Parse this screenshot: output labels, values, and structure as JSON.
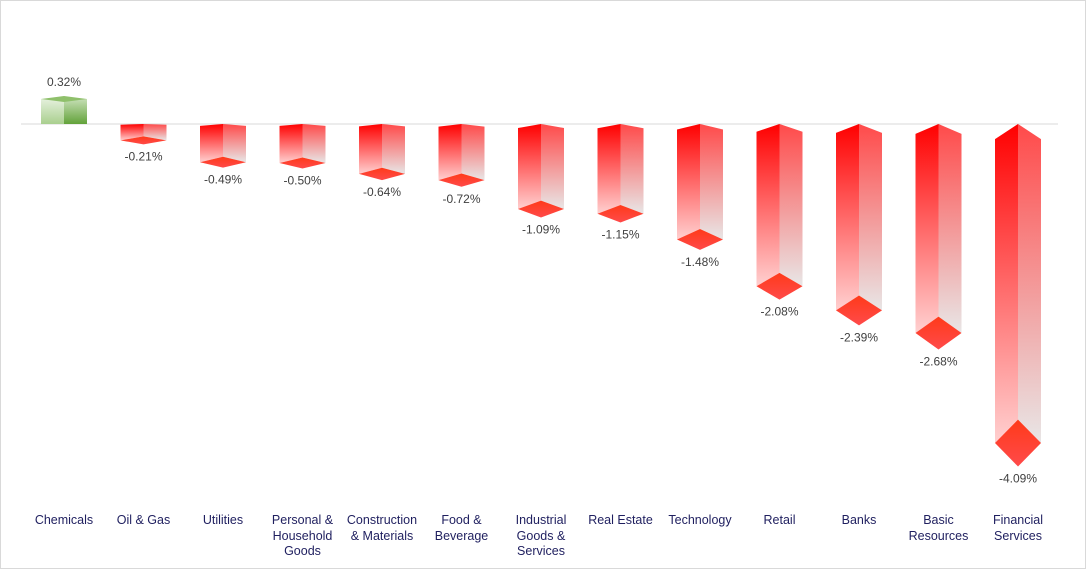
{
  "chart_data": {
    "type": "bar",
    "title": "",
    "xlabel": "",
    "ylabel": "",
    "categories": [
      "Chemicals",
      "Oil & Gas",
      "Utilities",
      "Personal & Household Goods",
      "Construction & Materials",
      "Food & Beverage",
      "Industrial Goods & Services",
      "Real Estate",
      "Technology",
      "Retail",
      "Banks",
      "Basic Resources",
      "Financial Services"
    ],
    "category_display": [
      "Chemicals",
      "Oil & Gas",
      "Utilities",
      "Personal &\nHousehold\nGoods",
      "Construction\n& Materials",
      "Food &\nBeverage",
      "Industrial\nGoods &\nServices",
      "Real Estate",
      "Technology",
      "Retail",
      "Banks",
      "Basic\nResources",
      "Financial\nServices"
    ],
    "values": [
      0.32,
      -0.21,
      -0.49,
      -0.5,
      -0.64,
      -0.72,
      -1.09,
      -1.15,
      -1.48,
      -2.08,
      -2.39,
      -2.68,
      -4.09
    ],
    "labels": [
      "0.32%",
      "-0.21%",
      "-0.49%",
      "-0.50%",
      "-0.64%",
      "-0.72%",
      "-1.09%",
      "-1.15%",
      "-1.48%",
      "-2.08%",
      "-2.39%",
      "-2.68%",
      "-4.09%"
    ],
    "unit": "%",
    "grid": false,
    "legend": "none",
    "colors": {
      "positive": "#70ad47",
      "negative": "#ff0000",
      "fade": "#e8e6e6",
      "baseline": "#d9d9d9"
    }
  }
}
